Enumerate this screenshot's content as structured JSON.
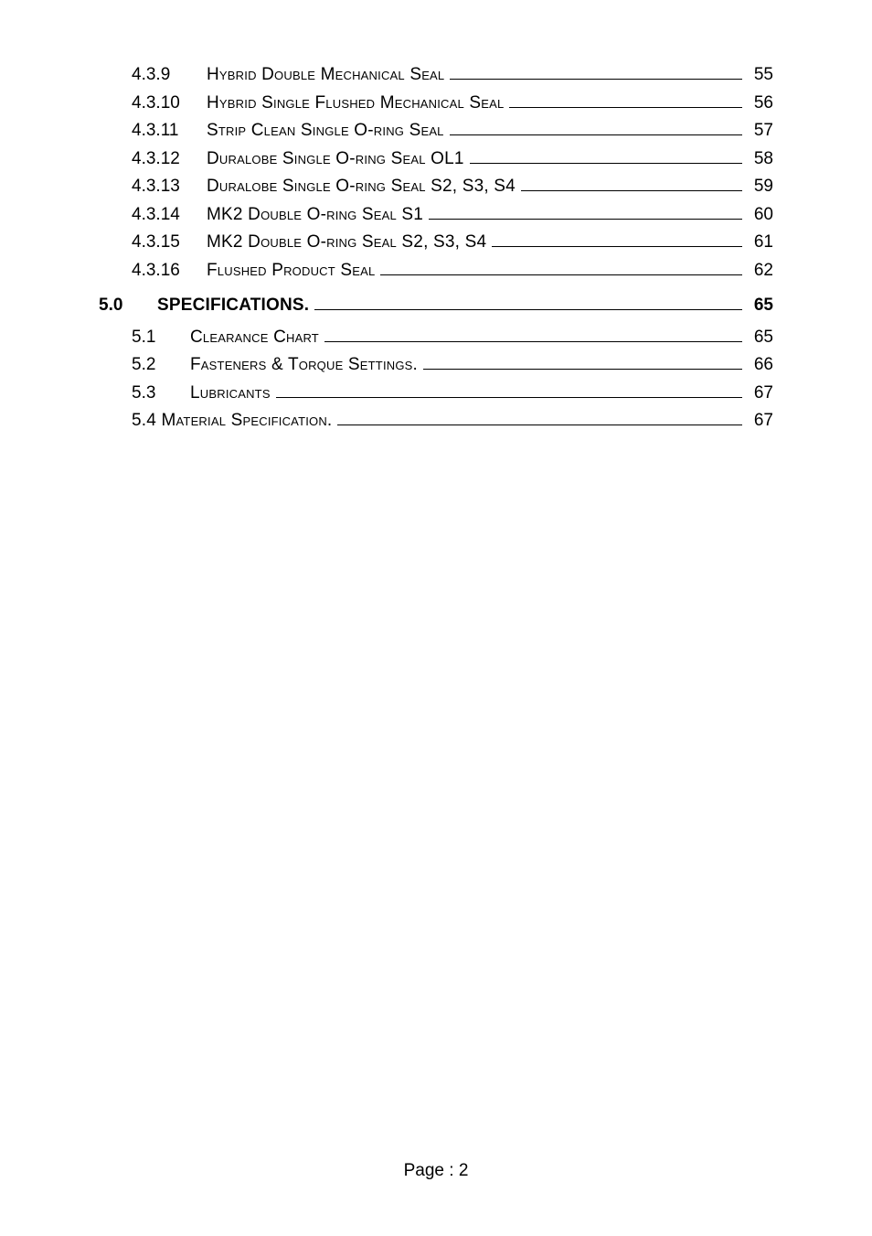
{
  "toc": {
    "items": [
      {
        "num": "4.3.9",
        "label": "Hybrid Double Mechanical Seal",
        "page": "55",
        "level": 2,
        "smallcaps": true
      },
      {
        "num": "4.3.10",
        "label": "Hybrid Single Flushed Mechanical Seal",
        "page": "56",
        "level": 2,
        "smallcaps": true
      },
      {
        "num": "4.3.11",
        "label": "Strip Clean Single O-ring Seal",
        "page": "57",
        "level": 2,
        "smallcaps": true
      },
      {
        "num": "4.3.12",
        "label": "Duralobe Single O-ring Seal OL1",
        "page": "58",
        "level": 2,
        "smallcaps": true
      },
      {
        "num": "4.3.13",
        "label": "Duralobe Single O-ring Seal S2, S3, S4",
        "page": "59",
        "level": 2,
        "smallcaps": true
      },
      {
        "num": "4.3.14",
        "label": "MK2 Double O-ring Seal S1",
        "page": "60",
        "level": 2,
        "smallcaps": true
      },
      {
        "num": "4.3.15",
        "label": "MK2 Double O-ring Seal S2, S3, S4",
        "page": "61",
        "level": 2,
        "smallcaps": true
      },
      {
        "num": "4.3.16",
        "label": "Flushed Product Seal",
        "page": "62",
        "level": 2,
        "smallcaps": true
      },
      {
        "num": "5.0",
        "label": "SPECIFICATIONS.",
        "page": "65",
        "level": 0,
        "bold": true
      },
      {
        "num": "5.1",
        "label": "Clearance Chart",
        "page": "65",
        "level": 1,
        "smallcaps": true
      },
      {
        "num": "5.2",
        "label": "Fasteners & Torque Settings.",
        "page": "66",
        "level": 1,
        "smallcaps": true
      },
      {
        "num": "5.3",
        "label": "Lubricants",
        "page": "67",
        "level": 1,
        "smallcaps": true
      },
      {
        "num": "",
        "label": "5.4 Material Specification.",
        "page": "67",
        "level": 1,
        "smallcaps": true,
        "nonum": true
      }
    ]
  },
  "footer": {
    "text": "Page : 2"
  },
  "style": {
    "background_color": "#ffffff",
    "text_color": "#000000",
    "font_family": "Arial",
    "body_fontsize": 19,
    "leader_color": "#000000"
  }
}
